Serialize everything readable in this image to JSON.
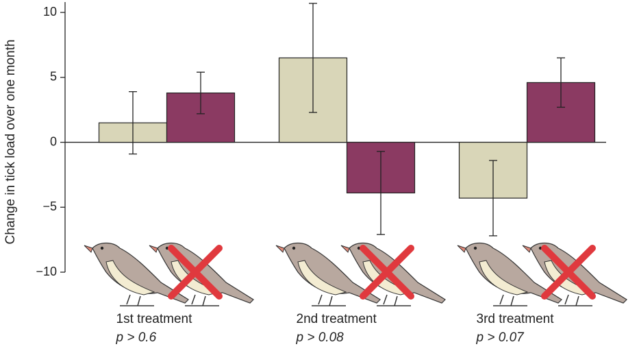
{
  "chart_data": {
    "type": "bar",
    "y_label": "Change in tick load over one month",
    "categories": [
      "1st treatment",
      "2nd treatment",
      "3rd treatment"
    ],
    "annotations": [
      "p > 0.6",
      "p > 0.08",
      "p > 0.07"
    ],
    "series": [
      {
        "color": "#d9d6b8",
        "values": [
          1.5,
          6.5,
          -4.3
        ],
        "errors": [
          2.4,
          4.2,
          2.9
        ]
      },
      {
        "color": "#8b3a62",
        "values": [
          3.8,
          -3.9,
          4.6
        ],
        "errors": [
          1.6,
          3.2,
          1.9
        ]
      }
    ],
    "ylim": [
      -10,
      10.8
    ],
    "yticks": [
      {
        "value": -10,
        "label": "−10"
      },
      {
        "value": -5,
        "label": "−5"
      },
      0,
      5,
      10
    ]
  }
}
